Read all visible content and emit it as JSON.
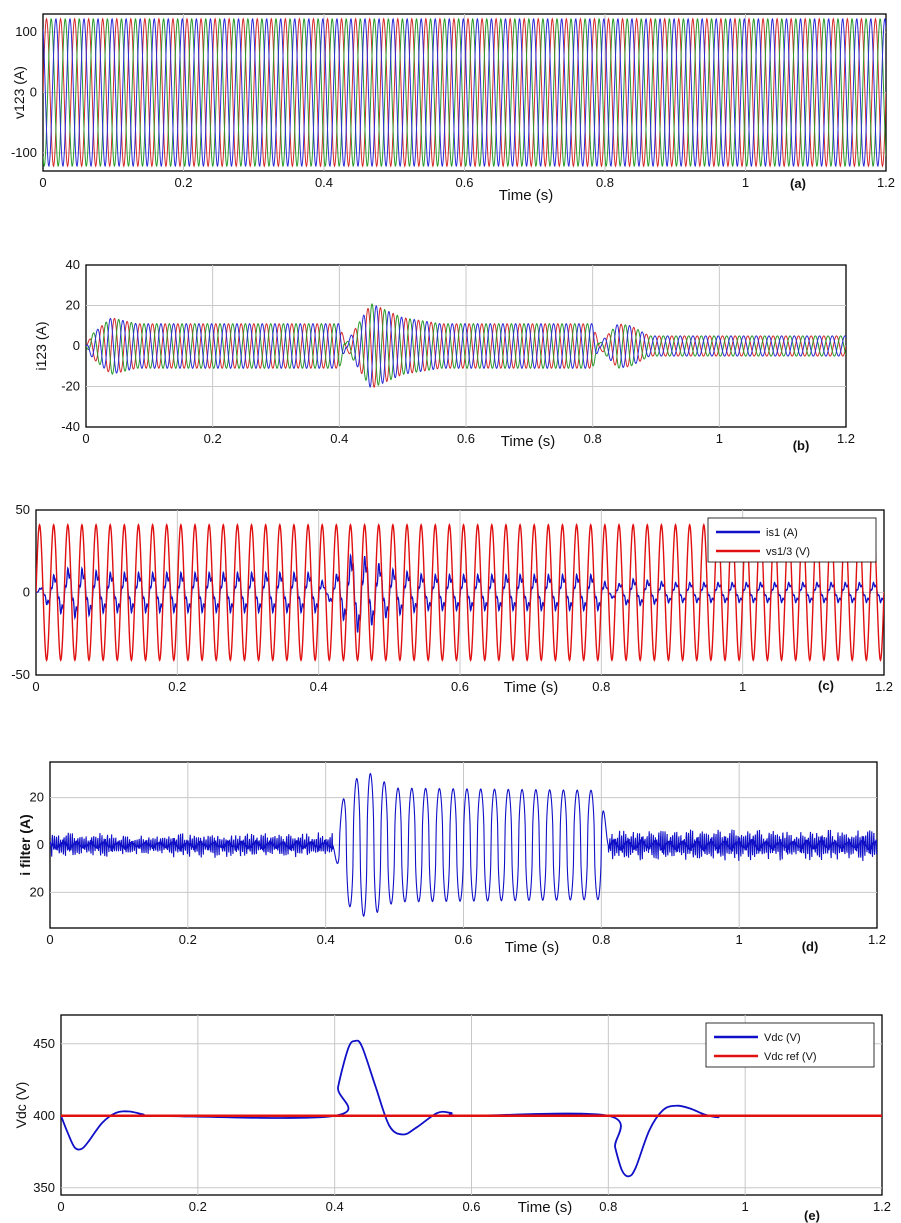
{
  "colors": {
    "phase1": "#d62a2a",
    "phase2": "#2a9a2a",
    "phase3": "#2b2bd8",
    "blue": "#1010c8",
    "red": "#e01010",
    "grid": "#c8c8c8",
    "frame": "#000000"
  },
  "chart_data": [
    {
      "type": "line",
      "panel_label": "(a)",
      "xlabel": "Time (s)",
      "ylabel": "v123 (A)",
      "xlim": [
        0,
        1.2
      ],
      "ylim": [
        -130,
        130
      ],
      "xticks": [
        "0",
        "0.2",
        "0.4",
        "0.6",
        "0.8",
        "1",
        "1.2"
      ],
      "yticks": [
        "-100",
        "0",
        "100"
      ],
      "grid": true,
      "waveform": {
        "kind": "three-phase-sine",
        "frequency_hz": 50,
        "segments": [
          {
            "t": [
              0,
              1.2
            ],
            "amplitude": 122
          }
        ]
      }
    },
    {
      "type": "line",
      "panel_label": "(b)",
      "xlabel": "Time (s)",
      "ylabel": "i123 (A)",
      "xlim": [
        0,
        1.2
      ],
      "ylim": [
        -40,
        40
      ],
      "xticks": [
        "0",
        "0.2",
        "0.4",
        "0.6",
        "0.8",
        "1",
        "1.2"
      ],
      "yticks": [
        "-40",
        "-20",
        "0",
        "20",
        "40"
      ],
      "grid": true,
      "waveform": {
        "kind": "three-phase-sine",
        "frequency_hz": 50,
        "envelope": [
          [
            0,
            0
          ],
          [
            0.01,
            6
          ],
          [
            0.04,
            14
          ],
          [
            0.08,
            11
          ],
          [
            0.4,
            11
          ],
          [
            0.41,
            1
          ],
          [
            0.42,
            6
          ],
          [
            0.45,
            21
          ],
          [
            0.5,
            14
          ],
          [
            0.56,
            11
          ],
          [
            0.8,
            11
          ],
          [
            0.81,
            1
          ],
          [
            0.84,
            11
          ],
          [
            0.86,
            10
          ],
          [
            0.89,
            5
          ],
          [
            1.2,
            5
          ]
        ]
      }
    },
    {
      "type": "line",
      "panel_label": "(c)",
      "xlabel": "Time (s)",
      "xlim": [
        0,
        1.2
      ],
      "ylim": [
        -50,
        50
      ],
      "xticks": [
        "0",
        "0.2",
        "0.4",
        "0.6",
        "0.8",
        "1",
        "1.2"
      ],
      "yticks": [
        "-50",
        "0",
        "50"
      ],
      "legend": {
        "position": "top-right",
        "entries": [
          "is1 (A)",
          "vs1/3 (V)"
        ]
      },
      "series": [
        {
          "name": "is1 (A)",
          "color": "#1010c8",
          "frequency_hz": 50,
          "envelope": [
            [
              0,
              0
            ],
            [
              0.02,
              8
            ],
            [
              0.05,
              13
            ],
            [
              0.1,
              10
            ],
            [
              0.4,
              10
            ],
            [
              0.41,
              2
            ],
            [
              0.45,
              21
            ],
            [
              0.5,
              12
            ],
            [
              0.55,
              9
            ],
            [
              0.8,
              9
            ],
            [
              0.81,
              2
            ],
            [
              0.84,
              7
            ],
            [
              0.9,
              5
            ],
            [
              1.2,
              5
            ]
          ]
        },
        {
          "name": "vs1/3 (V)",
          "color": "#e01010",
          "frequency_hz": 50,
          "amplitude": 41
        }
      ]
    },
    {
      "type": "line",
      "panel_label": "(d)",
      "xlabel": "Time (s)",
      "ylabel": "i filter (A)",
      "xlim": [
        0,
        1.2
      ],
      "ylim": [
        -35,
        35
      ],
      "xticks": [
        "0",
        "0.2",
        "0.4",
        "0.6",
        "0.8",
        "1",
        "1.2"
      ],
      "yticks": [
        "20",
        "0",
        "20"
      ],
      "grid": true,
      "series": [
        {
          "name": "",
          "color": "#1010c8",
          "frequency_hz": 50,
          "segments": [
            {
              "t": [
                0,
                0.41
              ],
              "amplitude": 4,
              "noisy": true
            },
            {
              "t": [
                0.41,
                0.81
              ],
              "envelope": [
                [
                  0.41,
                  0
                ],
                [
                  0.43,
                  25
                ],
                [
                  0.46,
                  31
                ],
                [
                  0.5,
                  24
                ],
                [
                  0.8,
                  23
                ],
                [
                  0.81,
                  0
                ]
              ]
            },
            {
              "t": [
                0.81,
                1.2
              ],
              "amplitude": 5,
              "noisy": true
            }
          ]
        }
      ]
    },
    {
      "type": "line",
      "panel_label": "(e)",
      "xlabel": "Time (s)",
      "ylabel": "Vdc (V)",
      "xlim": [
        0,
        1.2
      ],
      "ylim": [
        345,
        470
      ],
      "xticks": [
        "0",
        "0.2",
        "0.4",
        "0.6",
        "0.8",
        "1",
        "1.2"
      ],
      "yticks": [
        "350",
        "400",
        "450"
      ],
      "grid": true,
      "legend": {
        "position": "top-right",
        "entries": [
          "Vdc (V)",
          "Vdc ref (V)"
        ]
      },
      "series": [
        {
          "name": "Vdc (V)",
          "color": "#1010c8",
          "points": [
            [
              0,
              400
            ],
            [
              0.01,
              388
            ],
            [
              0.02,
              378
            ],
            [
              0.03,
              377
            ],
            [
              0.04,
              382
            ],
            [
              0.06,
              395
            ],
            [
              0.08,
              402
            ],
            [
              0.1,
              403
            ],
            [
              0.12,
              401
            ],
            [
              0.14,
              400
            ],
            [
              0.4,
              400
            ],
            [
              0.405,
              420
            ],
            [
              0.42,
              447
            ],
            [
              0.43,
              452
            ],
            [
              0.44,
              448
            ],
            [
              0.46,
              420
            ],
            [
              0.48,
              393
            ],
            [
              0.5,
              387
            ],
            [
              0.52,
              392
            ],
            [
              0.55,
              402
            ],
            [
              0.57,
              402
            ],
            [
              0.59,
              400
            ],
            [
              0.8,
              400
            ],
            [
              0.81,
              378
            ],
            [
              0.82,
              362
            ],
            [
              0.83,
              358
            ],
            [
              0.84,
              364
            ],
            [
              0.86,
              390
            ],
            [
              0.88,
              404
            ],
            [
              0.9,
              407
            ],
            [
              0.92,
              405
            ],
            [
              0.94,
              401
            ],
            [
              0.96,
              399
            ],
            [
              0.98,
              400
            ]
          ]
        },
        {
          "name": "Vdc ref (V)",
          "color": "#e01010",
          "points": [
            [
              0,
              400
            ],
            [
              1.2,
              400
            ]
          ]
        }
      ]
    }
  ]
}
